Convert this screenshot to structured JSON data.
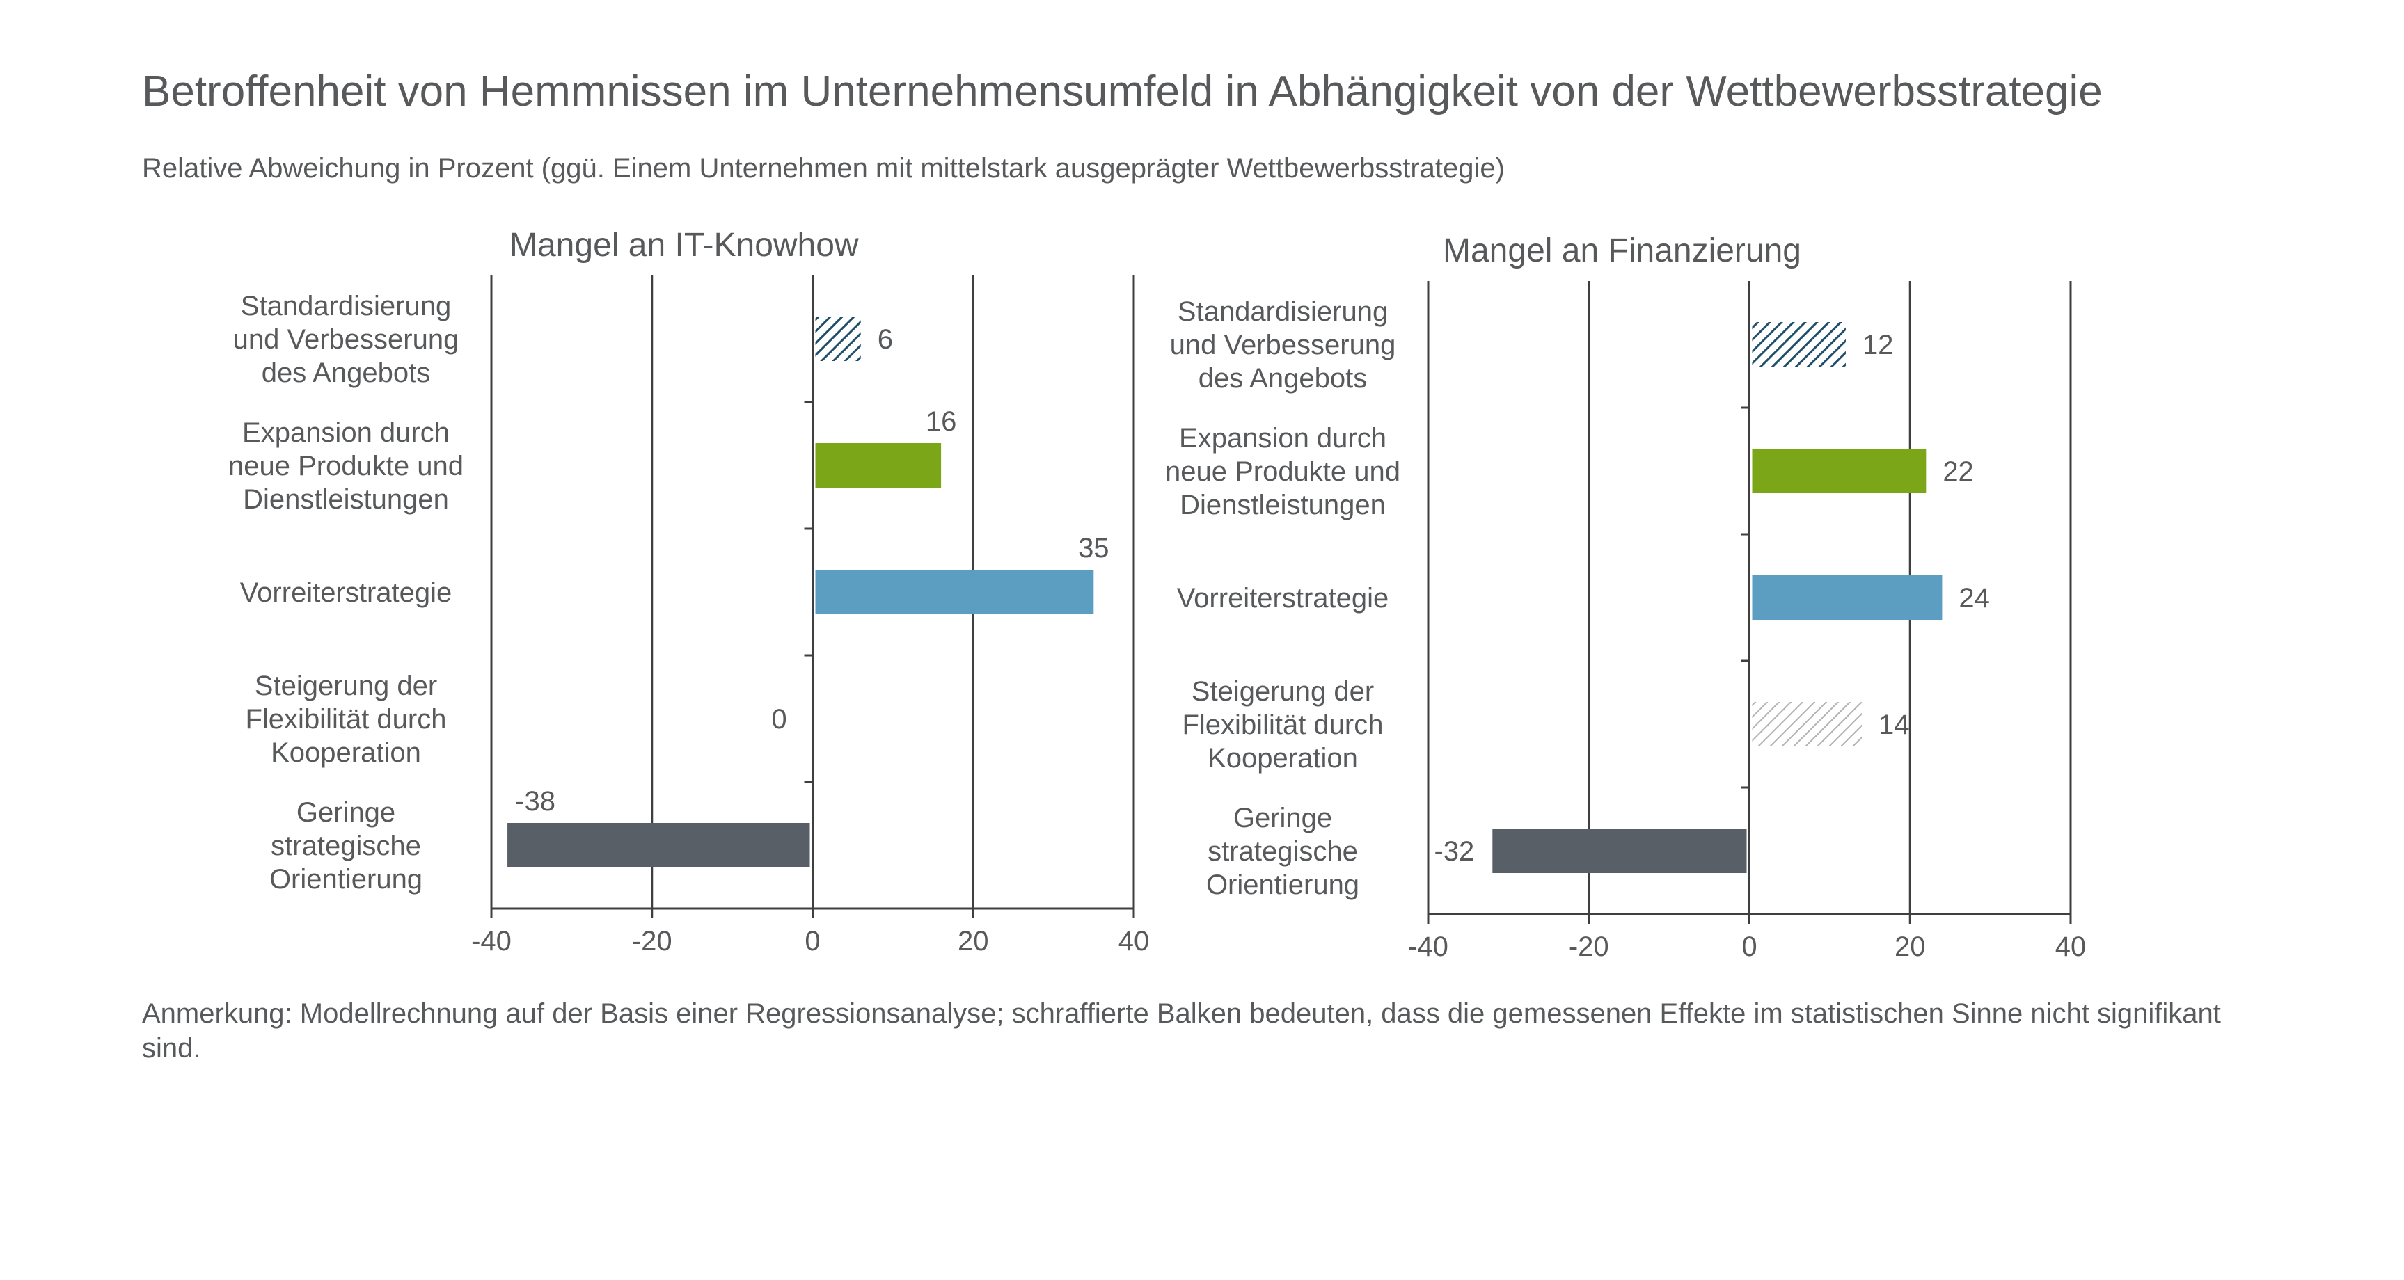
{
  "title": "Betroffenheit von Hemmnissen im Unternehmensumfeld in Abhängigkeit von der Wettbewerbsstrategie",
  "subtitle": "Relative Abweichung in Prozent (ggü. Einem Unternehmen mit mittelstark ausgeprägter Wettbewerbsstrategie)",
  "note": "Anmerkung: Modellrechnung auf der Basis einer Regressionsanalyse; schraffierte Balken bedeuten, dass die gemessenen Effekte im statistischen Sinne nicht signifikant sind.",
  "colors": {
    "standardisierung": "#1f4e6b",
    "expansion": "#7aa617",
    "vorreiter": "#5b9ec2",
    "steigerung": "#b3b3b3",
    "geringe": "#595f66",
    "axis": "#3f3f3f",
    "text": "#58595b"
  },
  "chart_data": [
    {
      "type": "bar",
      "orientation": "horizontal",
      "title": "Mangel an IT-Knowhow",
      "categories": [
        "Standardisierung und Verbesserung des Angebots",
        "Expansion durch neue Produkte und Dienstleistungen",
        "Vorreiterstrategie",
        "Steigerung der Flexibilität durch Kooperation",
        "Geringe strategische Orientierung"
      ],
      "category_lines": [
        [
          "Standardisierung",
          "und Verbesserung",
          "des Angebots"
        ],
        [
          "Expansion durch",
          "neue Produkte und",
          "Dienstleistungen"
        ],
        [
          "Vorreiterstrategie"
        ],
        [
          "Steigerung der",
          "Flexibilität durch",
          "Kooperation"
        ],
        [
          "Geringe",
          "strategische",
          "Orientierung"
        ]
      ],
      "values": [
        6,
        16,
        35,
        0,
        -38
      ],
      "labels": [
        "6",
        "16",
        "35",
        "0",
        "-38"
      ],
      "hatched": [
        true,
        false,
        false,
        false,
        false
      ],
      "bar_colors": [
        "#1f4e6b",
        "#7aa617",
        "#5b9ec2",
        "#b3b3b3",
        "#595f66"
      ],
      "xlim": [
        -40,
        40
      ],
      "xticks": [
        -40,
        -20,
        0,
        20,
        40
      ],
      "grid": true
    },
    {
      "type": "bar",
      "orientation": "horizontal",
      "title": "Mangel an Finanzierung",
      "categories": [
        "Standardisierung und Verbesserung des Angebots",
        "Expansion durch neue Produkte und Dienstleistungen",
        "Vorreiterstrategie",
        "Steigerung der Flexibilität durch Kooperation",
        "Geringe strategische Orientierung"
      ],
      "category_lines": [
        [
          "Standardisierung",
          "und Verbesserung",
          "des Angebots"
        ],
        [
          "Expansion durch",
          "neue Produkte und",
          "Dienstleistungen"
        ],
        [
          "Vorreiterstrategie"
        ],
        [
          "Steigerung der",
          "Flexibilität durch",
          "Kooperation"
        ],
        [
          "Geringe",
          "strategische",
          "Orientierung"
        ]
      ],
      "values": [
        12,
        22,
        24,
        14,
        -32
      ],
      "labels": [
        "12",
        "22",
        "24",
        "14",
        "-32"
      ],
      "hatched": [
        true,
        false,
        false,
        true,
        false
      ],
      "bar_colors": [
        "#1f4e6b",
        "#7aa617",
        "#5b9ec2",
        "#b3b3b3",
        "#595f66"
      ],
      "xlim": [
        -40,
        40
      ],
      "xticks": [
        -40,
        -20,
        0,
        20,
        40
      ],
      "grid": true
    }
  ]
}
